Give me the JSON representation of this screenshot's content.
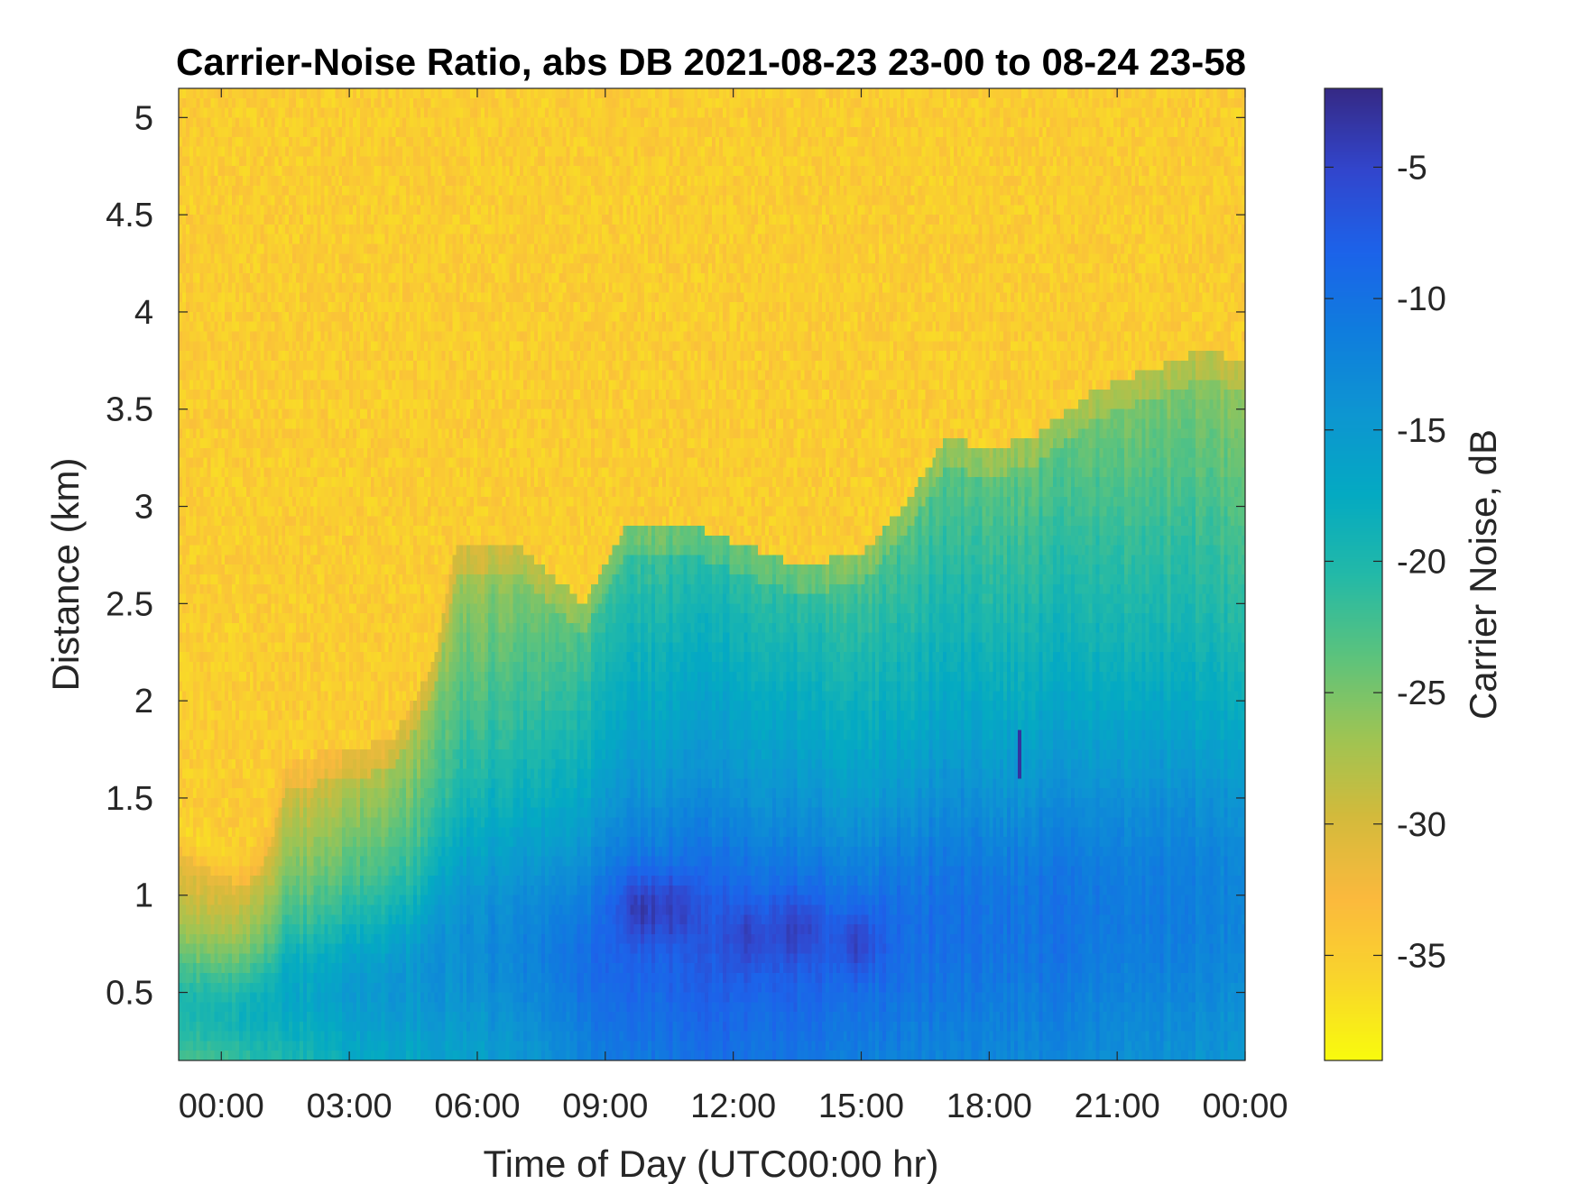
{
  "chart_data": {
    "type": "heatmap",
    "title": "Carrier-Noise Ratio, abs DB 2021-08-23 23-00 to 08-24 23-58",
    "xlabel": "Time of Day (UTC00:00 hr)",
    "ylabel": "Distance (km)",
    "colorbar_label": "Carrier Noise, dB",
    "x_range_hours": [
      -1,
      24
    ],
    "y_range_km": [
      0.15,
      5.15
    ],
    "color_range_db": [
      -39,
      -2
    ],
    "colormap": "parula-reversed",
    "x_ticks": [
      {
        "hour": 0,
        "label": "00:00"
      },
      {
        "hour": 3,
        "label": "03:00"
      },
      {
        "hour": 6,
        "label": "06:00"
      },
      {
        "hour": 9,
        "label": "09:00"
      },
      {
        "hour": 12,
        "label": "12:00"
      },
      {
        "hour": 15,
        "label": "15:00"
      },
      {
        "hour": 18,
        "label": "18:00"
      },
      {
        "hour": 21,
        "label": "21:00"
      },
      {
        "hour": 24,
        "label": "00:00"
      }
    ],
    "y_ticks": [
      {
        "value": 0.5,
        "label": "0.5"
      },
      {
        "value": 1,
        "label": "1"
      },
      {
        "value": 1.5,
        "label": "1.5"
      },
      {
        "value": 2,
        "label": "2"
      },
      {
        "value": 2.5,
        "label": "2.5"
      },
      {
        "value": 3,
        "label": "3"
      },
      {
        "value": 3.5,
        "label": "3.5"
      },
      {
        "value": 4,
        "label": "4"
      },
      {
        "value": 4.5,
        "label": "4.5"
      },
      {
        "value": 5,
        "label": "5"
      }
    ],
    "colorbar_ticks": [
      {
        "value": -5,
        "label": "-5"
      },
      {
        "value": -10,
        "label": "-10"
      },
      {
        "value": -15,
        "label": "-15"
      },
      {
        "value": -20,
        "label": "-20"
      },
      {
        "value": -25,
        "label": "-25"
      },
      {
        "value": -30,
        "label": "-30"
      },
      {
        "value": -35,
        "label": "-35"
      }
    ],
    "signal_top_km": [
      {
        "hour": -1,
        "km": 1.4
      },
      {
        "hour": -0.5,
        "km": 1.3
      },
      {
        "hour": 0.5,
        "km": 1.2
      },
      {
        "hour": 1,
        "km": 1.3
      },
      {
        "hour": 1.5,
        "km": 1.7
      },
      {
        "hour": 3,
        "km": 1.75
      },
      {
        "hour": 4,
        "km": 1.8
      },
      {
        "hour": 5,
        "km": 2.2
      },
      {
        "hour": 5.5,
        "km": 2.8
      },
      {
        "hour": 7,
        "km": 2.8
      },
      {
        "hour": 8.5,
        "km": 2.5
      },
      {
        "hour": 9.5,
        "km": 2.9
      },
      {
        "hour": 11,
        "km": 2.9
      },
      {
        "hour": 13.5,
        "km": 2.7
      },
      {
        "hour": 15,
        "km": 2.75
      },
      {
        "hour": 16,
        "km": 3.0
      },
      {
        "hour": 17,
        "km": 3.35
      },
      {
        "hour": 18,
        "km": 3.3
      },
      {
        "hour": 19,
        "km": 3.35
      },
      {
        "hour": 20.5,
        "km": 3.6
      },
      {
        "hour": 23,
        "km": 3.8
      },
      {
        "hour": 24,
        "km": 3.75
      }
    ],
    "surface_value_db": [
      {
        "hour": -1,
        "db": -24
      },
      {
        "hour": 1,
        "db": -22
      },
      {
        "hour": 3,
        "db": -19
      },
      {
        "hour": 6,
        "db": -17
      },
      {
        "hour": 9.5,
        "db": -12
      },
      {
        "hour": 12,
        "db": -11
      },
      {
        "hour": 16,
        "db": -13
      },
      {
        "hour": 20,
        "db": -14
      },
      {
        "hour": 24,
        "db": -16
      }
    ],
    "hotspots": [
      {
        "hour": 9.9,
        "km": 0.93,
        "db": -3
      },
      {
        "hour": 10.6,
        "km": 0.93,
        "db": -4
      },
      {
        "hour": 12.4,
        "km": 0.78,
        "db": -4
      },
      {
        "hour": 13.5,
        "km": 0.82,
        "db": -4
      },
      {
        "hour": 14.9,
        "km": 0.75,
        "db": -4
      }
    ],
    "notable_streaks": [
      {
        "hour": 18.7,
        "km_from": 1.6,
        "km_to": 1.85,
        "db": -3
      }
    ]
  }
}
